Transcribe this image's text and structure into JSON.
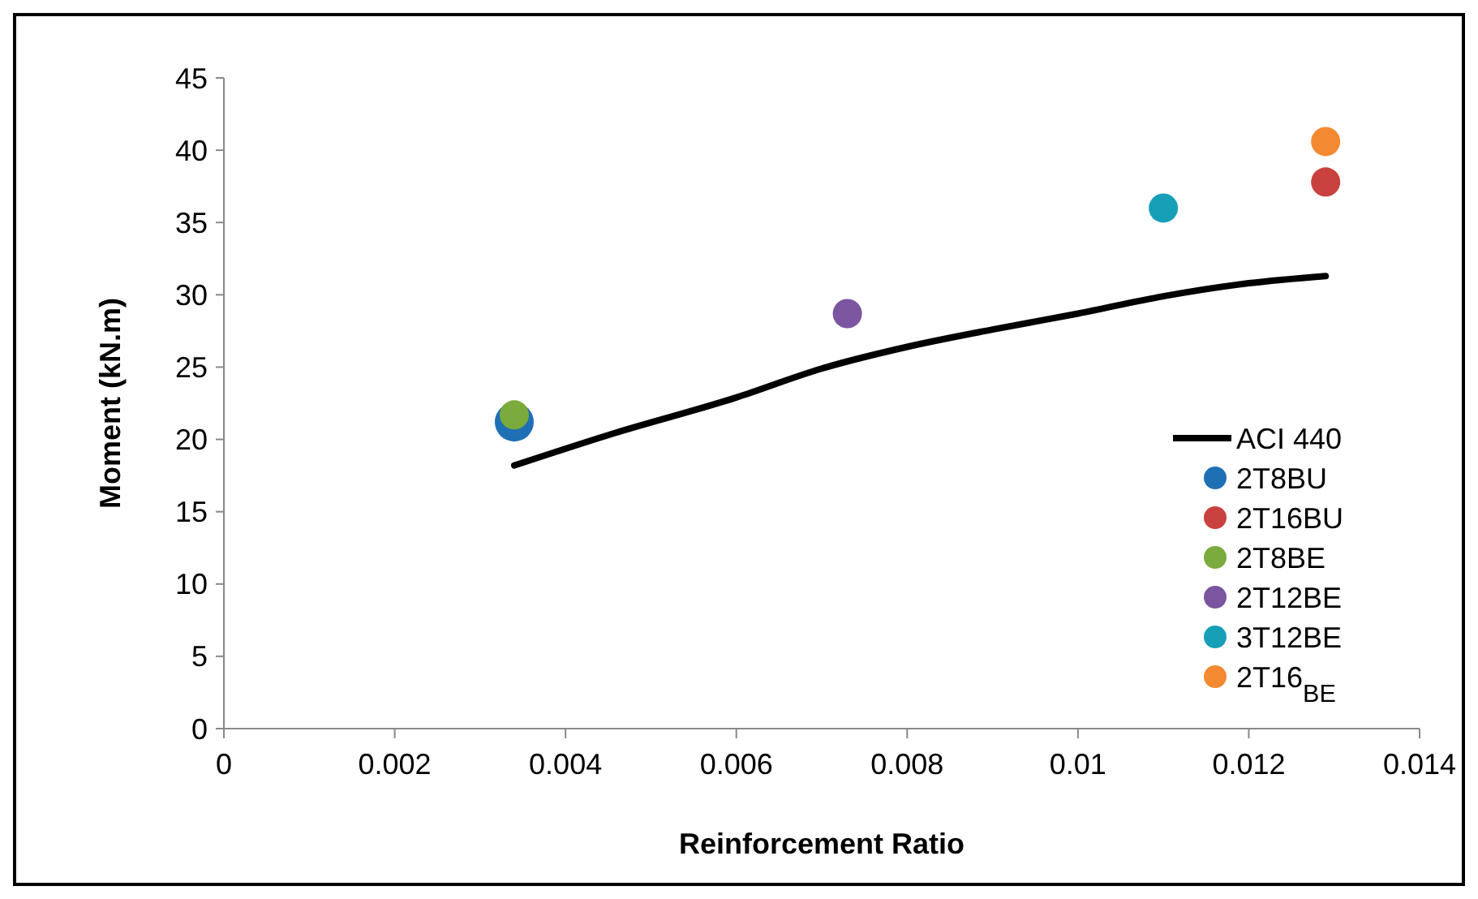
{
  "chart_data": {
    "type": "scatter",
    "xlabel": "Reinforcement Ratio",
    "ylabel": "Moment (kN.m)",
    "xlim": [
      0,
      0.014
    ],
    "xticks": [
      0,
      0.002,
      0.004,
      0.006,
      0.008,
      0.01,
      0.012,
      0.014
    ],
    "ylim": [
      0,
      45
    ],
    "yticks": [
      0,
      5,
      10,
      15,
      20,
      25,
      30,
      35,
      40,
      45
    ],
    "grid": false,
    "legend": "bottom right",
    "marker": "circle",
    "series": [
      {
        "name": "ACI 440",
        "type": "line",
        "color": "#000000",
        "marker": "none",
        "x": [
          0.0034,
          0.0045,
          0.006,
          0.007,
          0.008,
          0.009,
          0.01,
          0.011,
          0.012,
          0.0129
        ],
        "values": [
          18.2,
          20.3,
          22.9,
          24.9,
          26.4,
          27.6,
          28.7,
          29.9,
          30.8,
          31.3
        ]
      },
      {
        "name": "2T8BU",
        "color": "#1f6fb5",
        "x": [
          0.0034
        ],
        "values": [
          21.2
        ]
      },
      {
        "name": "2T16BU",
        "color": "#c9413e",
        "x": [
          0.0129
        ],
        "values": [
          37.8
        ]
      },
      {
        "name": "2T8BE",
        "color": "#7aab3c",
        "x": [
          0.0034
        ],
        "values": [
          21.7
        ]
      },
      {
        "name": "2T12BE",
        "color": "#7b55a0",
        "x": [
          0.0073
        ],
        "values": [
          28.7
        ]
      },
      {
        "name": "3T12BE",
        "color": "#179fb8",
        "x": [
          0.011
        ],
        "values": [
          36.0
        ]
      },
      {
        "name": "2T16$_{BE}$",
        "color": "#f38a31",
        "x": [
          0.0129
        ],
        "values": [
          40.6
        ]
      }
    ]
  }
}
